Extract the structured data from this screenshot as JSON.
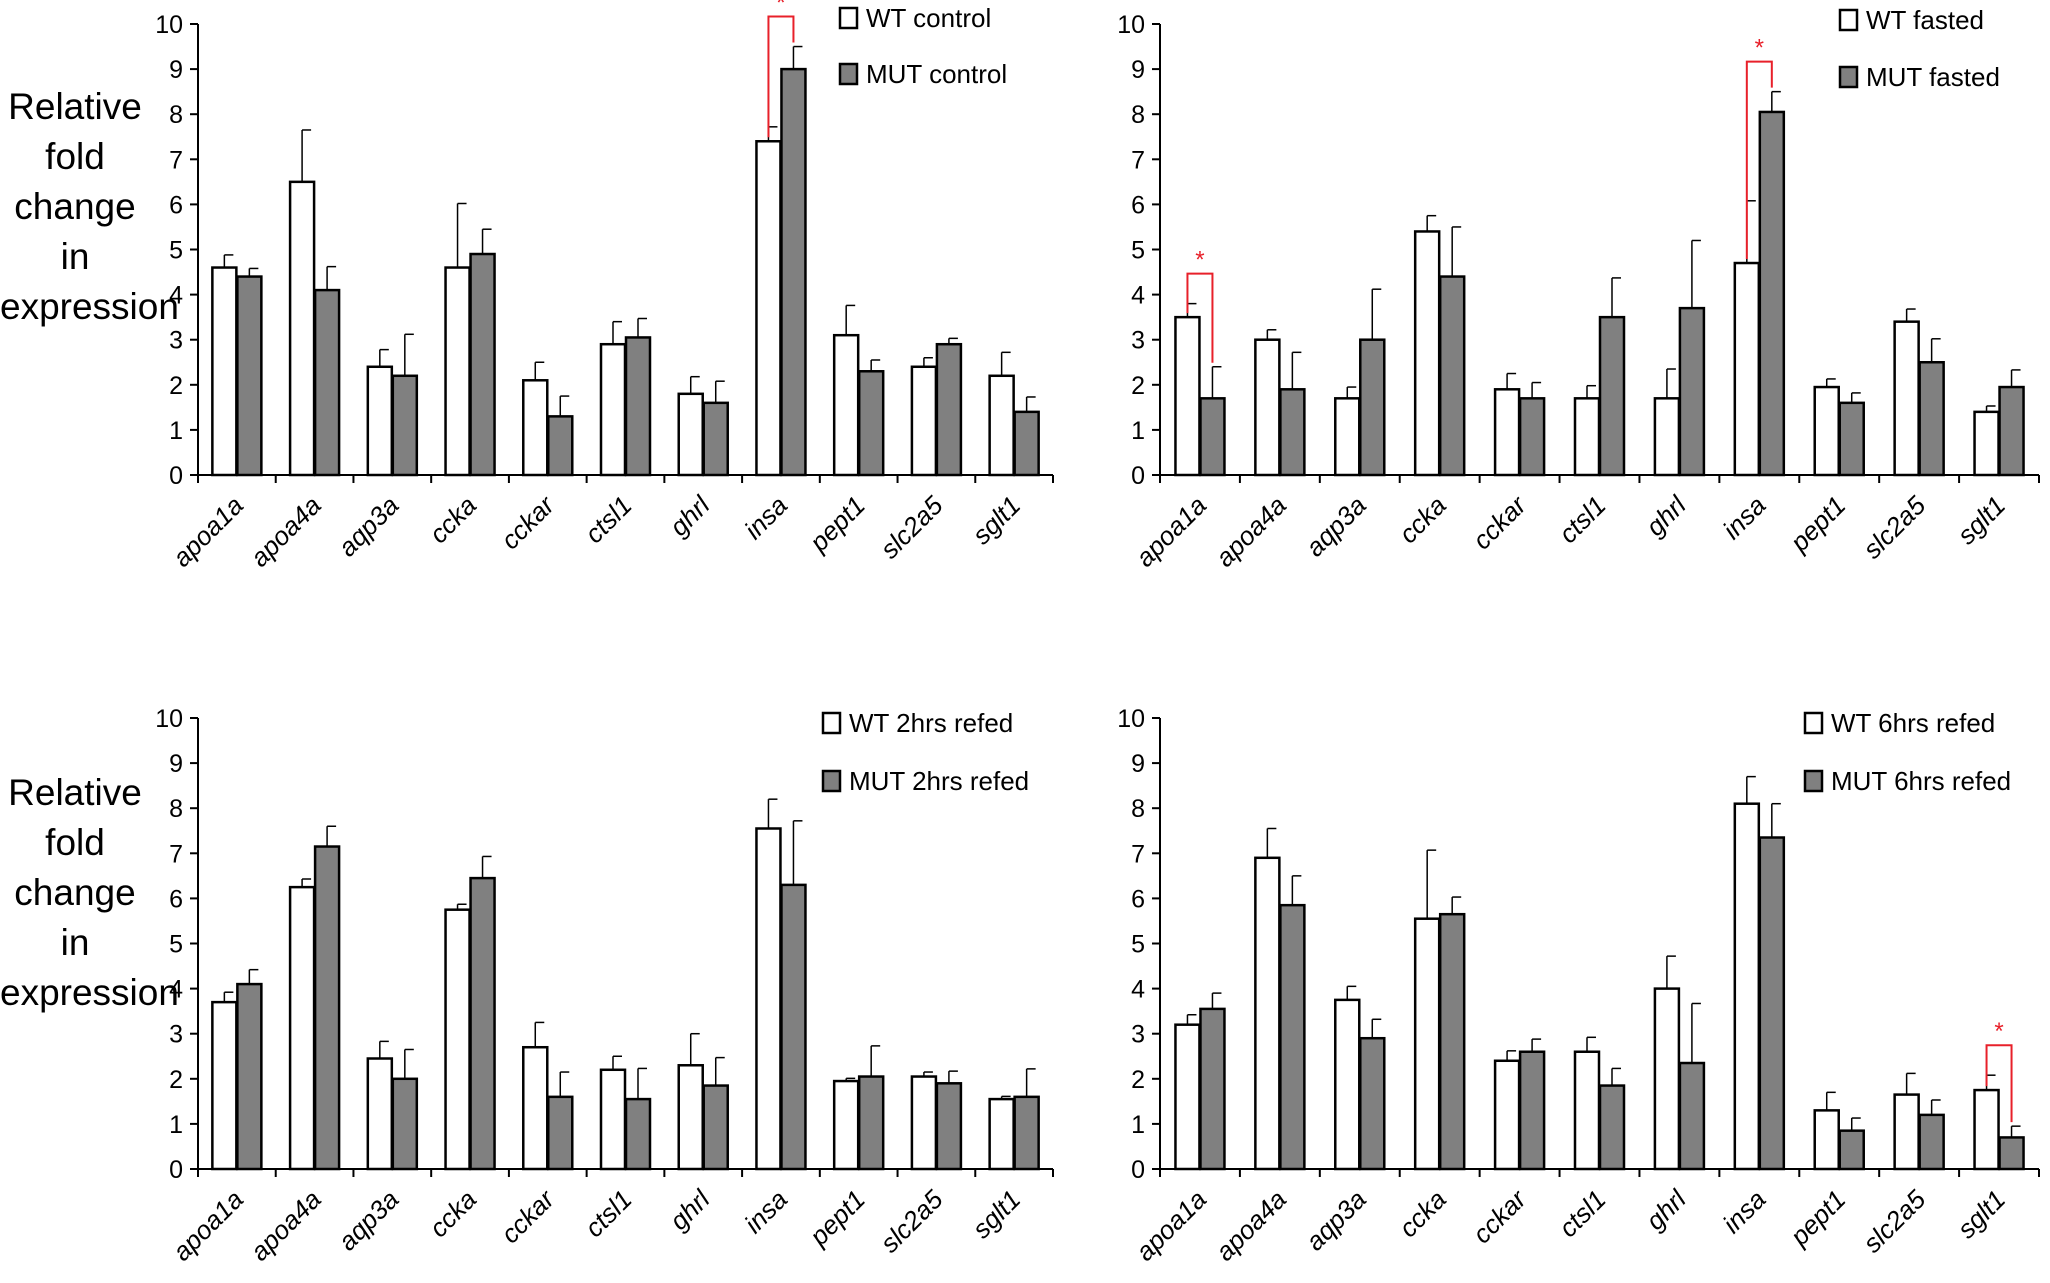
{
  "ylabel": {
    "line1": "Relative fold change",
    "line2": "in expression"
  },
  "colors": {
    "wt": "#ffffff",
    "mut": "#808080",
    "significance": "#e8202a",
    "axis": "#000000"
  },
  "chart_data": [
    {
      "type": "bar",
      "categories": [
        "apoa1a",
        "apoa4a",
        "aqp3a",
        "ccka",
        "cckar",
        "ctsl1",
        "ghrl",
        "insa",
        "pept1",
        "slc2a5",
        "sglt1"
      ],
      "ylim": [
        0,
        10
      ],
      "yticks": [
        0,
        1,
        2,
        3,
        4,
        5,
        6,
        7,
        8,
        9,
        10
      ],
      "grid": false,
      "legend_position": "top-right",
      "series": [
        {
          "name": "WT control",
          "values": [
            4.6,
            6.5,
            2.4,
            4.6,
            2.1,
            2.9,
            1.8,
            7.4,
            3.1,
            2.4,
            2.2
          ],
          "errors": [
            0.28,
            1.15,
            0.38,
            1.42,
            0.4,
            0.5,
            0.38,
            0.32,
            0.66,
            0.2,
            0.52
          ]
        },
        {
          "name": "MUT control",
          "values": [
            4.4,
            4.1,
            2.2,
            4.9,
            1.3,
            3.05,
            1.6,
            9.0,
            2.3,
            2.9,
            1.4
          ],
          "errors": [
            0.18,
            0.52,
            0.92,
            0.55,
            0.45,
            0.42,
            0.48,
            0.5,
            0.25,
            0.13,
            0.33
          ]
        }
      ],
      "significance": [
        {
          "category": "insa",
          "label": "*"
        }
      ]
    },
    {
      "type": "bar",
      "categories": [
        "apoa1a",
        "apoa4a",
        "aqp3a",
        "ccka",
        "cckar",
        "ctsl1",
        "ghrl",
        "insa",
        "pept1",
        "slc2a5",
        "sglt1"
      ],
      "ylim": [
        0,
        10
      ],
      "yticks": [
        0,
        1,
        2,
        3,
        4,
        5,
        6,
        7,
        8,
        9,
        10
      ],
      "grid": false,
      "legend_position": "top-right",
      "series": [
        {
          "name": "WT fasted",
          "values": [
            3.5,
            3.0,
            1.7,
            5.4,
            1.9,
            1.7,
            1.7,
            4.7,
            1.95,
            3.4,
            1.4
          ],
          "errors": [
            0.3,
            0.22,
            0.25,
            0.35,
            0.35,
            0.28,
            0.65,
            1.38,
            0.18,
            0.28,
            0.13
          ]
        },
        {
          "name": "MUT fasted",
          "values": [
            1.7,
            1.9,
            3.0,
            4.4,
            1.7,
            3.5,
            3.7,
            8.05,
            1.6,
            2.5,
            1.95
          ],
          "errors": [
            0.7,
            0.82,
            1.12,
            1.1,
            0.35,
            0.87,
            1.5,
            0.45,
            0.22,
            0.52,
            0.38
          ]
        }
      ],
      "significance": [
        {
          "category": "apoa1a",
          "label": "*"
        },
        {
          "category": "insa",
          "label": "*"
        }
      ]
    },
    {
      "type": "bar",
      "categories": [
        "apoa1a",
        "apoa4a",
        "aqp3a",
        "ccka",
        "cckar",
        "ctsl1",
        "ghrl",
        "insa",
        "pept1",
        "slc2a5",
        "sglt1"
      ],
      "ylim": [
        0,
        10
      ],
      "yticks": [
        0,
        1,
        2,
        3,
        4,
        5,
        6,
        7,
        8,
        9,
        10
      ],
      "grid": false,
      "legend_position": "top-right",
      "series": [
        {
          "name": "WT 2hrs refed",
          "values": [
            3.7,
            6.25,
            2.45,
            5.75,
            2.7,
            2.2,
            2.3,
            7.55,
            1.95,
            2.05,
            1.55
          ],
          "errors": [
            0.22,
            0.18,
            0.38,
            0.12,
            0.55,
            0.3,
            0.7,
            0.65,
            0.06,
            0.1,
            0.06
          ]
        },
        {
          "name": "MUT 2hrs refed",
          "values": [
            4.1,
            7.15,
            2.0,
            6.45,
            1.6,
            1.55,
            1.85,
            6.3,
            2.05,
            1.9,
            1.6
          ],
          "errors": [
            0.32,
            0.45,
            0.65,
            0.48,
            0.55,
            0.68,
            0.62,
            1.42,
            0.68,
            0.27,
            0.62
          ]
        }
      ],
      "significance": []
    },
    {
      "type": "bar",
      "categories": [
        "apoa1a",
        "apoa4a",
        "aqp3a",
        "ccka",
        "cckar",
        "ctsl1",
        "ghrl",
        "insa",
        "pept1",
        "slc2a5",
        "sglt1"
      ],
      "ylim": [
        0,
        10
      ],
      "yticks": [
        0,
        1,
        2,
        3,
        4,
        5,
        6,
        7,
        8,
        9,
        10
      ],
      "grid": false,
      "legend_position": "top-right",
      "series": [
        {
          "name": "WT 6hrs refed",
          "values": [
            3.2,
            6.9,
            3.75,
            5.55,
            2.4,
            2.6,
            4.0,
            8.1,
            1.3,
            1.65,
            1.75
          ],
          "errors": [
            0.22,
            0.65,
            0.3,
            1.52,
            0.22,
            0.32,
            0.72,
            0.6,
            0.4,
            0.47,
            0.33
          ]
        },
        {
          "name": "MUT 6hrs refed",
          "values": [
            3.55,
            5.85,
            2.9,
            5.65,
            2.6,
            1.85,
            2.35,
            7.35,
            0.85,
            1.2,
            0.7
          ],
          "errors": [
            0.35,
            0.65,
            0.42,
            0.38,
            0.28,
            0.38,
            1.32,
            0.75,
            0.28,
            0.33,
            0.25
          ]
        }
      ],
      "significance": [
        {
          "category": "sglt1",
          "label": "*"
        }
      ]
    }
  ]
}
